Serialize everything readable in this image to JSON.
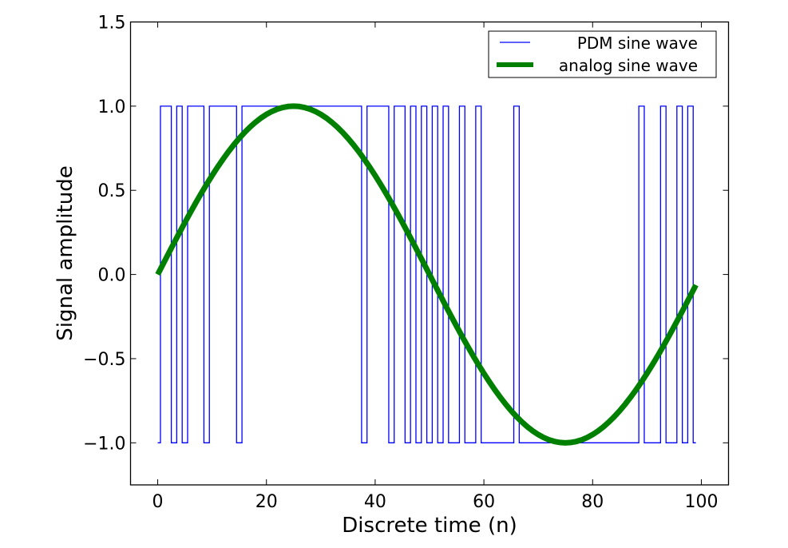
{
  "chart_data": {
    "type": "line",
    "title": "",
    "xlabel": "Discrete time (n)",
    "ylabel": "Signal amplitude",
    "xlim": [
      -5,
      105
    ],
    "ylim": [
      -1.25,
      1.5
    ],
    "xticks": [
      0,
      20,
      40,
      60,
      80,
      100
    ],
    "xtick_labels": [
      "0",
      "20",
      "40",
      "60",
      "80",
      "100"
    ],
    "yticks": [
      -1.0,
      -0.5,
      0.0,
      0.5,
      1.0,
      1.5
    ],
    "ytick_labels": [
      "−1.0",
      "−0.5",
      "0.0",
      "0.5",
      "1.0",
      "1.5"
    ],
    "grid": false,
    "legend_position": "top-right",
    "series": [
      {
        "name": "PDM sine wave",
        "style": "steps-mid",
        "color": "#0000ff",
        "x_start": 0,
        "values": [
          -1,
          1,
          1,
          -1,
          1,
          -1,
          1,
          1,
          1,
          -1,
          1,
          1,
          1,
          1,
          1,
          -1,
          1,
          1,
          1,
          1,
          1,
          1,
          1,
          1,
          1,
          1,
          1,
          1,
          1,
          1,
          1,
          1,
          1,
          1,
          1,
          1,
          1,
          1,
          -1,
          1,
          1,
          1,
          1,
          -1,
          1,
          1,
          -1,
          1,
          -1,
          1,
          -1,
          1,
          -1,
          1,
          -1,
          -1,
          1,
          -1,
          -1,
          1,
          -1,
          -1,
          -1,
          -1,
          -1,
          -1,
          1,
          -1,
          -1,
          -1,
          -1,
          -1,
          -1,
          -1,
          -1,
          -1,
          -1,
          -1,
          -1,
          -1,
          -1,
          -1,
          -1,
          -1,
          -1,
          -1,
          -1,
          -1,
          -1,
          1,
          -1,
          -1,
          -1,
          1,
          -1,
          -1,
          1,
          -1,
          1,
          -1
        ]
      },
      {
        "name": "analog sine wave",
        "style": "line",
        "color": "#008000",
        "function": "sin(2*pi*n/100)",
        "amplitude": 1,
        "period": 100,
        "n_range": [
          0,
          99
        ]
      }
    ]
  }
}
